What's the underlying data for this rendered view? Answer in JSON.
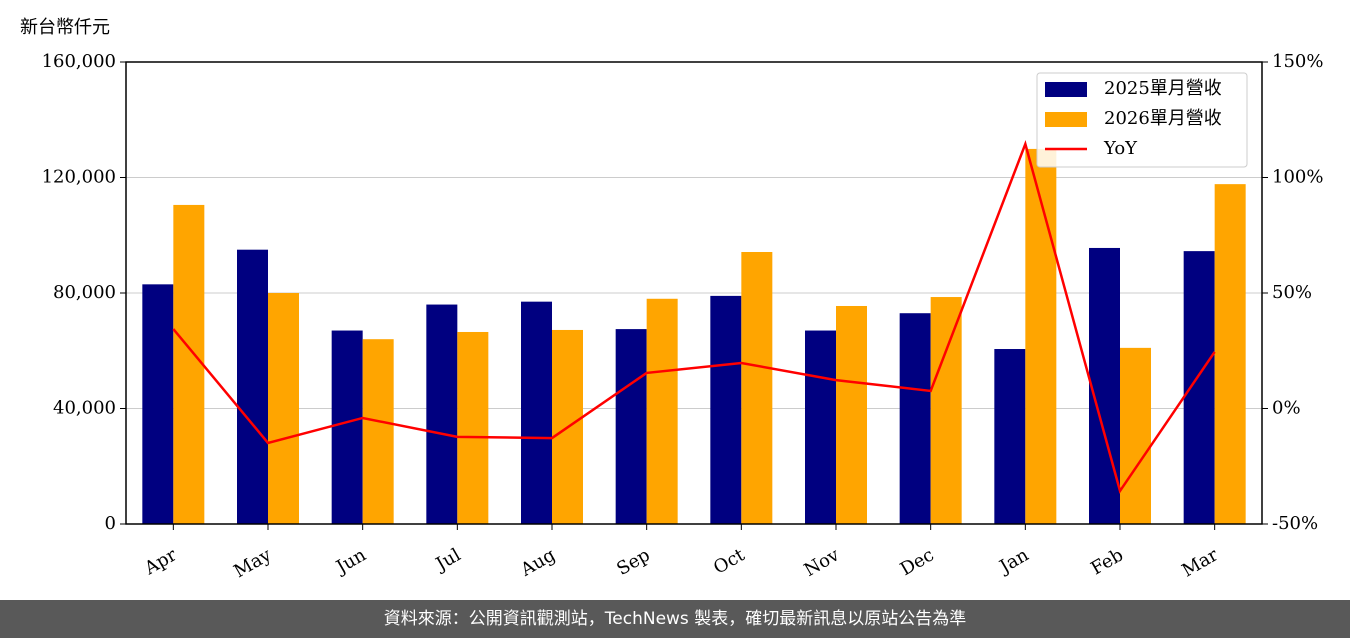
{
  "chart_data": {
    "type": "bar",
    "y_label": "新台幣仟元",
    "categories": [
      "Apr",
      "May",
      "Jun",
      "Jul",
      "Aug",
      "Sep",
      "Oct",
      "Nov",
      "Dec",
      "Jan",
      "Feb",
      "Mar"
    ],
    "series": [
      {
        "name": "2025單月營收",
        "color": "#000080",
        "values": [
          83000,
          95000,
          67000,
          76000,
          77000,
          67500,
          79000,
          67000,
          73000,
          60600,
          95600,
          94500
        ]
      },
      {
        "name": "2026單月營收",
        "color": "#ffa500",
        "values": [
          110500,
          80000,
          64000,
          66500,
          67200,
          78000,
          94200,
          75500,
          78600,
          129900,
          61000,
          117700
        ]
      },
      {
        "name": "YoY",
        "color": "#ff0000",
        "type": "line",
        "axis": "y2",
        "values": [
          34.4,
          -14.9,
          -4.1,
          -12.3,
          -12.8,
          15.4,
          19.7,
          12.3,
          7.6,
          114.5,
          -35.7,
          24.5
        ]
      }
    ],
    "ylim": [
      0,
      160000
    ],
    "yticks": [
      0,
      {
        "value": 40000,
        "label": "40,000"
      },
      {
        "value": 80000,
        "label": "80,000"
      },
      {
        "value": 120000,
        "label": "120,000"
      },
      {
        "value": 160000,
        "label": "160,000"
      }
    ],
    "y2lim": [
      -50,
      150
    ],
    "y2ticks": [
      {
        "value": -50,
        "label": "-50%"
      },
      {
        "value": 0,
        "label": "0%"
      },
      {
        "value": 50,
        "label": "50%"
      },
      {
        "value": 100,
        "label": "100%"
      },
      {
        "value": 150,
        "label": "150%"
      }
    ],
    "grid": true,
    "legend": "upper right"
  },
  "footer": "資料來源：公開資訊觀測站，TechNews 製表，確切最新訊息以原站公告為準"
}
